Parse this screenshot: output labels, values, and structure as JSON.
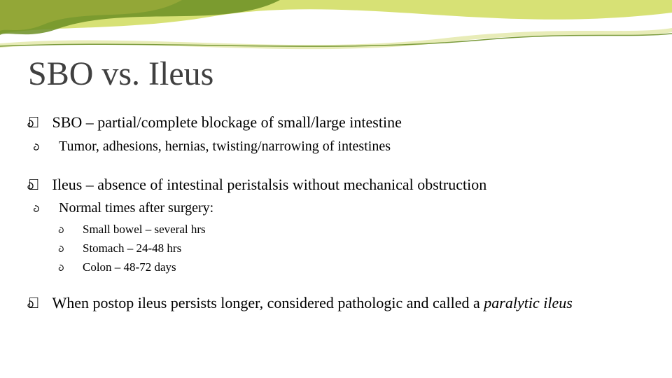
{
  "colors": {
    "title": "#404040",
    "body_text": "#000000",
    "background": "#ffffff",
    "wave_dark_green": "#6b8e23",
    "wave_olive": "#9aaa3a",
    "wave_yellow_green": "#c6d43a",
    "wave_pale": "#e8ecb8",
    "underline_green": "#7a9a3a"
  },
  "typography": {
    "title_fontsize": 48,
    "level1_fontsize": 22,
    "level2_fontsize": 20,
    "level3_fontsize": 17,
    "font_family": "Georgia"
  },
  "title": "SBO vs. Ileus",
  "bullets": [
    {
      "level": 1,
      "text": "SBO – partial/complete blockage of small/large intestine",
      "children": [
        {
          "level": 2,
          "text": "Tumor, adhesions, hernias, twisting/narrowing of intestines"
        }
      ]
    },
    {
      "level": 1,
      "text": "Ileus – absence of intestinal peristalsis without mechanical obstruction",
      "children": [
        {
          "level": 2,
          "text": "Normal times after surgery:",
          "children": [
            {
              "level": 3,
              "text": "Small bowel – several hrs"
            },
            {
              "level": 3,
              "text": "Stomach – 24-48 hrs"
            },
            {
              "level": 3,
              "text": "Colon – 48-72 days"
            }
          ]
        }
      ]
    },
    {
      "level": 1,
      "text_html": "When postop ileus persists longer, considered pathologic and called a <span class=\"italic\">paralytic ileus</span>"
    }
  ]
}
